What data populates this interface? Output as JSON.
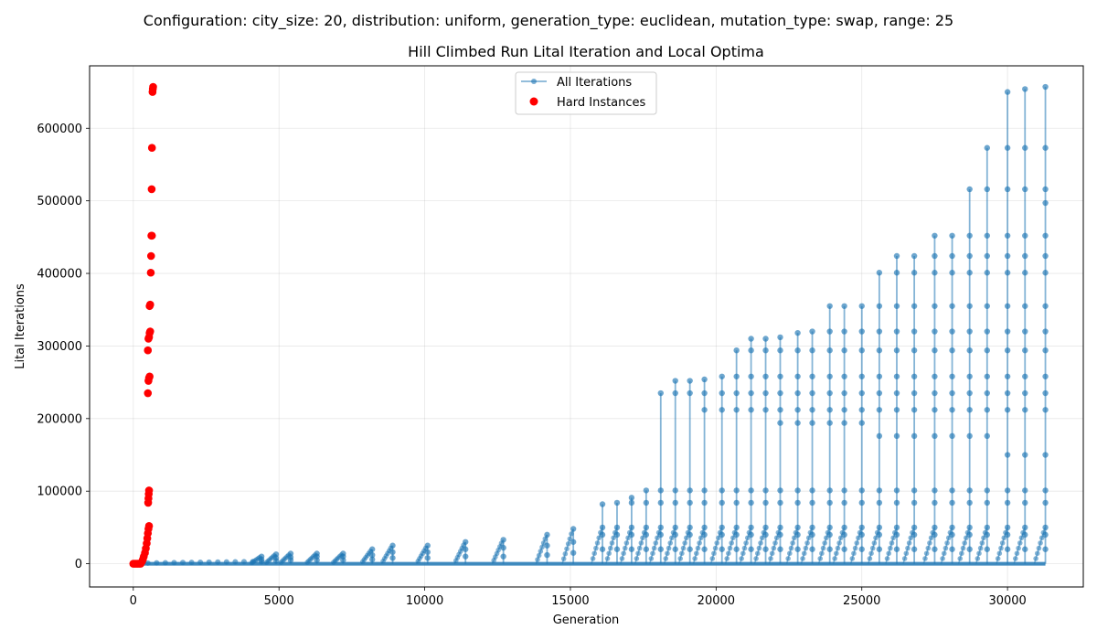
{
  "suptitle": "Configuration: city_size: 20, distribution: uniform, generation_type: euclidean, mutation_type: swap, range: 25",
  "chart_data": {
    "type": "scatter",
    "title": "Hill Climbed Run Lital Iteration and Local Optima",
    "xlabel": "Generation",
    "ylabel": "Lital Iterations",
    "xlim": [
      -1500,
      32600
    ],
    "ylim": [
      -32000,
      686000
    ],
    "xticks": [
      0,
      5000,
      10000,
      15000,
      20000,
      25000,
      30000
    ],
    "xtick_labels": [
      "0",
      "5000",
      "10000",
      "15000",
      "20000",
      "25000",
      "30000"
    ],
    "yticks": [
      0,
      100000,
      200000,
      300000,
      400000,
      500000,
      600000
    ],
    "ytick_labels": [
      "0",
      "100000",
      "200000",
      "300000",
      "400000",
      "500000",
      "600000"
    ],
    "grid": true,
    "legend_position": "top-center",
    "series": [
      {
        "name": "All Iterations",
        "style": "line-with-markers",
        "color": "#1f77b4",
        "generations": [
          {
            "x": 4400,
            "peak": 10000,
            "levels": [
              3000,
              6000,
              10000
            ]
          },
          {
            "x": 4900,
            "peak": 13000,
            "levels": [
              4000,
              8000,
              13000
            ]
          },
          {
            "x": 5400,
            "peak": 14000,
            "levels": [
              5000,
              9000,
              14000
            ]
          },
          {
            "x": 6300,
            "peak": 14000,
            "levels": [
              5000,
              10000,
              14000
            ]
          },
          {
            "x": 7200,
            "peak": 14000,
            "levels": [
              5000,
              10000,
              14000
            ]
          },
          {
            "x": 8200,
            "peak": 20000,
            "levels": [
              6000,
              12000,
              20000
            ]
          },
          {
            "x": 8900,
            "peak": 25000,
            "levels": [
              8000,
              16000,
              25000
            ]
          },
          {
            "x": 10100,
            "peak": 25000,
            "levels": [
              8000,
              16000,
              25000
            ]
          },
          {
            "x": 11400,
            "peak": 30000,
            "levels": [
              10000,
              20000,
              30000
            ]
          },
          {
            "x": 12700,
            "peak": 33000,
            "levels": [
              10000,
              22000,
              33000
            ]
          },
          {
            "x": 14200,
            "peak": 40000,
            "levels": [
              12000,
              25000,
              40000
            ]
          },
          {
            "x": 15100,
            "peak": 48000,
            "levels": [
              15000,
              30000,
              48000
            ]
          },
          {
            "x": 16100,
            "peak": 82000,
            "levels": [
              20000,
              40000,
              50000,
              82000
            ]
          },
          {
            "x": 16600,
            "peak": 84000,
            "levels": [
              20000,
              40000,
              50000,
              84000
            ]
          },
          {
            "x": 17100,
            "peak": 91000,
            "levels": [
              20000,
              40000,
              50000,
              84000,
              91000
            ]
          },
          {
            "x": 17600,
            "peak": 101000,
            "levels": [
              20000,
              40000,
              50000,
              84000,
              101000
            ]
          },
          {
            "x": 18100,
            "peak": 235000,
            "levels": [
              20000,
              40000,
              50000,
              84000,
              101000,
              235000
            ]
          },
          {
            "x": 18600,
            "peak": 252000,
            "levels": [
              20000,
              40000,
              50000,
              84000,
              101000,
              235000,
              252000
            ]
          },
          {
            "x": 19100,
            "peak": 252000,
            "levels": [
              20000,
              40000,
              50000,
              84000,
              101000,
              235000,
              252000
            ]
          },
          {
            "x": 19600,
            "peak": 254000,
            "levels": [
              20000,
              40000,
              50000,
              84000,
              101000,
              212000,
              235000,
              254000
            ]
          },
          {
            "x": 20200,
            "peak": 258000,
            "levels": [
              20000,
              40000,
              50000,
              84000,
              101000,
              212000,
              235000,
              258000
            ]
          },
          {
            "x": 20700,
            "peak": 294000,
            "levels": [
              20000,
              40000,
              50000,
              84000,
              101000,
              212000,
              235000,
              258000,
              294000
            ]
          },
          {
            "x": 21200,
            "peak": 310000,
            "levels": [
              20000,
              40000,
              50000,
              84000,
              101000,
              212000,
              235000,
              258000,
              294000,
              310000
            ]
          },
          {
            "x": 21700,
            "peak": 310000,
            "levels": [
              20000,
              40000,
              50000,
              84000,
              101000,
              212000,
              235000,
              258000,
              294000,
              310000
            ]
          },
          {
            "x": 22200,
            "peak": 312000,
            "levels": [
              20000,
              40000,
              50000,
              84000,
              101000,
              194000,
              212000,
              235000,
              258000,
              294000,
              312000
            ]
          },
          {
            "x": 22800,
            "peak": 318000,
            "levels": [
              20000,
              40000,
              50000,
              84000,
              101000,
              194000,
              212000,
              235000,
              258000,
              294000,
              318000
            ]
          },
          {
            "x": 23300,
            "peak": 320000,
            "levels": [
              20000,
              40000,
              50000,
              84000,
              101000,
              194000,
              212000,
              235000,
              258000,
              294000,
              320000
            ]
          },
          {
            "x": 23900,
            "peak": 355000,
            "levels": [
              20000,
              40000,
              50000,
              84000,
              101000,
              194000,
              212000,
              235000,
              258000,
              294000,
              320000,
              355000
            ]
          },
          {
            "x": 24400,
            "peak": 355000,
            "levels": [
              20000,
              40000,
              50000,
              84000,
              101000,
              194000,
              212000,
              235000,
              258000,
              294000,
              320000,
              355000
            ]
          },
          {
            "x": 25000,
            "peak": 355000,
            "levels": [
              20000,
              40000,
              50000,
              84000,
              101000,
              194000,
              212000,
              235000,
              258000,
              294000,
              320000,
              355000
            ]
          },
          {
            "x": 25600,
            "peak": 401000,
            "levels": [
              20000,
              40000,
              50000,
              84000,
              101000,
              176000,
              212000,
              235000,
              258000,
              294000,
              320000,
              355000,
              401000
            ]
          },
          {
            "x": 26200,
            "peak": 424000,
            "levels": [
              20000,
              40000,
              50000,
              84000,
              101000,
              176000,
              212000,
              235000,
              258000,
              294000,
              320000,
              355000,
              401000,
              424000
            ]
          },
          {
            "x": 26800,
            "peak": 424000,
            "levels": [
              20000,
              40000,
              50000,
              84000,
              101000,
              176000,
              212000,
              235000,
              258000,
              294000,
              320000,
              355000,
              401000,
              424000
            ]
          },
          {
            "x": 27500,
            "peak": 452000,
            "levels": [
              20000,
              40000,
              50000,
              84000,
              101000,
              176000,
              212000,
              235000,
              258000,
              294000,
              320000,
              355000,
              401000,
              424000,
              452000
            ]
          },
          {
            "x": 28100,
            "peak": 452000,
            "levels": [
              20000,
              40000,
              50000,
              84000,
              101000,
              176000,
              212000,
              235000,
              258000,
              294000,
              320000,
              355000,
              401000,
              424000,
              452000
            ]
          },
          {
            "x": 28700,
            "peak": 516000,
            "levels": [
              20000,
              40000,
              50000,
              84000,
              101000,
              176000,
              212000,
              235000,
              258000,
              294000,
              320000,
              355000,
              401000,
              424000,
              452000,
              516000
            ]
          },
          {
            "x": 29300,
            "peak": 573000,
            "levels": [
              20000,
              40000,
              50000,
              84000,
              101000,
              176000,
              212000,
              235000,
              258000,
              294000,
              320000,
              355000,
              401000,
              424000,
              452000,
              516000,
              573000
            ]
          },
          {
            "x": 30000,
            "peak": 650000,
            "levels": [
              20000,
              40000,
              50000,
              84000,
              101000,
              150000,
              212000,
              235000,
              258000,
              294000,
              320000,
              355000,
              401000,
              424000,
              452000,
              516000,
              573000,
              650000
            ]
          },
          {
            "x": 30600,
            "peak": 654000,
            "levels": [
              20000,
              40000,
              50000,
              84000,
              101000,
              150000,
              212000,
              235000,
              258000,
              294000,
              320000,
              355000,
              401000,
              424000,
              452000,
              516000,
              573000,
              654000
            ]
          },
          {
            "x": 31300,
            "peak": 657000,
            "levels": [
              20000,
              40000,
              50000,
              84000,
              101000,
              150000,
              212000,
              235000,
              258000,
              294000,
              320000,
              355000,
              401000,
              424000,
              452000,
              497000,
              516000,
              573000,
              657000
            ]
          }
        ]
      },
      {
        "name": "Hard Instances",
        "style": "scatter",
        "color": "#ff0000",
        "points": [
          [
            0,
            0
          ],
          [
            50,
            0
          ],
          [
            100,
            0
          ],
          [
            150,
            0
          ],
          [
            200,
            0
          ],
          [
            250,
            0
          ],
          [
            300,
            3000
          ],
          [
            330,
            6000
          ],
          [
            360,
            10000
          ],
          [
            400,
            15000
          ],
          [
            430,
            21000
          ],
          [
            460,
            28000
          ],
          [
            480,
            35000
          ],
          [
            500,
            42000
          ],
          [
            520,
            48000
          ],
          [
            540,
            52000
          ],
          [
            510,
            84000
          ],
          [
            520,
            90000
          ],
          [
            530,
            96000
          ],
          [
            540,
            101000
          ],
          [
            500,
            235000
          ],
          [
            520,
            252000
          ],
          [
            540,
            256000
          ],
          [
            560,
            258000
          ],
          [
            500,
            294000
          ],
          [
            520,
            310000
          ],
          [
            540,
            312000
          ],
          [
            560,
            318000
          ],
          [
            580,
            320000
          ],
          [
            560,
            355000
          ],
          [
            580,
            357000
          ],
          [
            600,
            401000
          ],
          [
            610,
            424000
          ],
          [
            620,
            452000
          ],
          [
            640,
            452000
          ],
          [
            630,
            516000
          ],
          [
            640,
            573000
          ],
          [
            660,
            650000
          ],
          [
            670,
            654000
          ],
          [
            680,
            657000
          ]
        ]
      }
    ]
  }
}
